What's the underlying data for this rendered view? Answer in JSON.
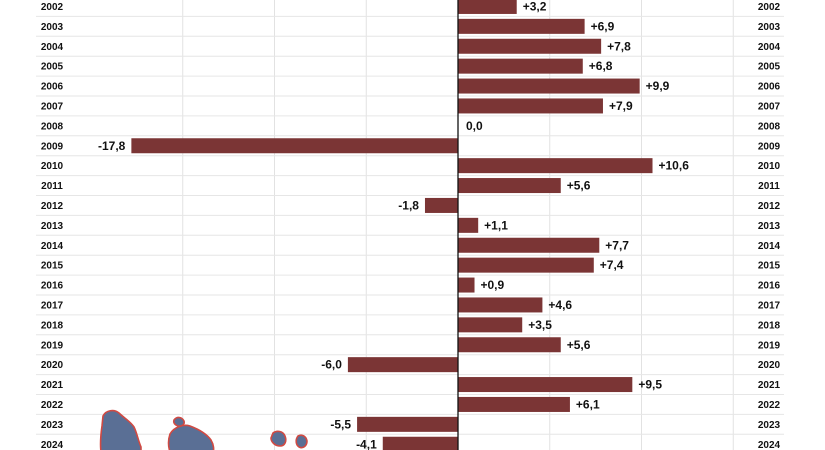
{
  "chart_data": {
    "type": "bar",
    "orientation": "horizontal",
    "categories": [
      "2002",
      "2003",
      "2004",
      "2005",
      "2006",
      "2007",
      "2008",
      "2009",
      "2010",
      "2011",
      "2012",
      "2013",
      "2014",
      "2015",
      "2016",
      "2017",
      "2018",
      "2019",
      "2020",
      "2021",
      "2022",
      "2023",
      "2024"
    ],
    "values": [
      3.2,
      6.9,
      7.8,
      6.8,
      9.9,
      7.9,
      0.0,
      -17.8,
      10.6,
      5.6,
      -1.8,
      1.1,
      7.7,
      7.4,
      0.9,
      4.6,
      3.5,
      5.6,
      -6.0,
      9.5,
      6.1,
      -5.5,
      -4.1
    ],
    "value_labels": [
      "+3,2",
      "+6,9",
      "+7,8",
      "+6,8",
      "+9,9",
      "+7,9",
      "0,0",
      "-17,8",
      "+10,6",
      "+5,6",
      "-1,8",
      "+1,1",
      "+7,7",
      "+7,4",
      "+0,9",
      "+4,6",
      "+3,5",
      "+5,6",
      "-6,0",
      "+9,5",
      "+6,1",
      "-5,5",
      "-4,1"
    ],
    "xlim": [
      -20,
      18
    ],
    "grid": true,
    "bar_color": "#7b3535",
    "zero_line_color": "#111111",
    "title": "",
    "xlabel": "",
    "ylabel": ""
  },
  "decoration": {
    "map_fill": "#5a6f95",
    "map_outline": "#d04a43"
  }
}
